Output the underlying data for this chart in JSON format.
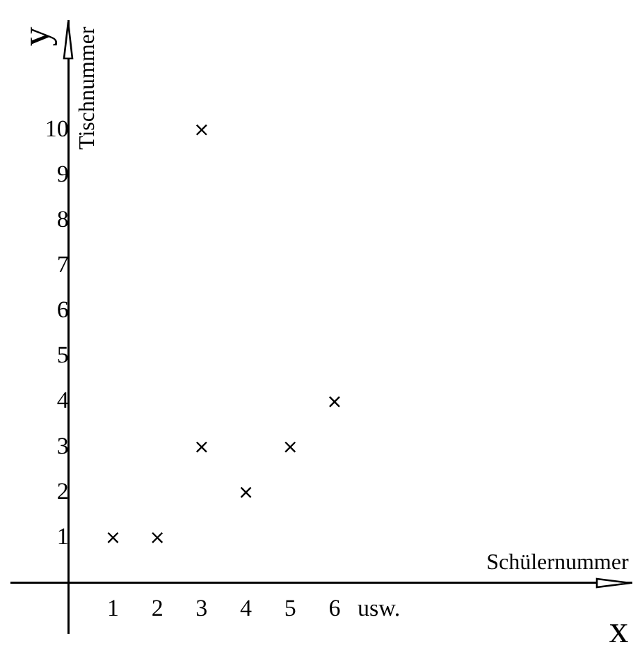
{
  "chart_data": {
    "type": "scatter",
    "xlabel": "Schülernummer",
    "ylabel": "Tischnummer",
    "annotations": [
      "x",
      "y"
    ],
    "x": [
      1,
      2,
      3,
      3,
      4,
      5,
      6
    ],
    "values": [
      1,
      1,
      3,
      10,
      2,
      3,
      4
    ],
    "color": "#000000",
    "marker": "cross",
    "xlim": [
      -1.3,
      12.7
    ],
    "ylim": [
      -1.1,
      12.4
    ],
    "xticks": [
      1,
      2,
      3,
      4,
      5,
      6,
      {
        "value": 7,
        "label": "usw."
      }
    ],
    "yticks": [
      1,
      2,
      3,
      4,
      5,
      6,
      7,
      8,
      9,
      10
    ],
    "grid": false,
    "legend": false
  }
}
